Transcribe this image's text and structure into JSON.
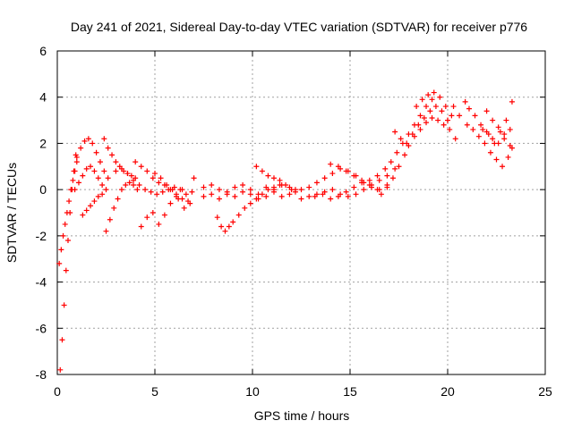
{
  "chart_data": {
    "type": "scatter",
    "title": "Day 241 of 2021, Sidereal Day-to-day VTEC variation (SDTVAR) for receiver p776",
    "xlabel": "GPS time / hours",
    "ylabel": "SDTVAR / TECUs",
    "xlim": [
      0,
      25
    ],
    "ylim": [
      -8,
      6
    ],
    "xticks": [
      0,
      5,
      10,
      15,
      20,
      25
    ],
    "yticks": [
      -8,
      -6,
      -4,
      -2,
      0,
      2,
      4,
      6
    ],
    "xtick_labels": [
      "0",
      "5",
      "10",
      "15",
      "20",
      "25"
    ],
    "ytick_labels": [
      "-8",
      "-6",
      "-4",
      "-2",
      "0",
      "2",
      "4",
      "6"
    ],
    "grid": true,
    "marker": "+",
    "color": "#ff0000",
    "series_segments": [
      {
        "name": "s1",
        "x": [
          0.15,
          0.25,
          0.35,
          0.45,
          0.55,
          0.65,
          0.75,
          0.85,
          0.95
        ],
        "y": [
          -7.8,
          -6.5,
          -5.0,
          -3.5,
          -2.2,
          -1.0,
          0.0,
          0.8,
          1.5
        ]
      },
      {
        "name": "s2",
        "x": [
          0.1,
          0.2,
          0.3,
          0.4,
          0.5,
          0.6,
          0.7,
          0.8,
          0.9,
          1.0
        ],
        "y": [
          -3.2,
          -2.6,
          -2.0,
          -1.5,
          -1.0,
          -0.5,
          0.0,
          0.4,
          0.8,
          1.2
        ]
      },
      {
        "name": "s3",
        "x": [
          1.0,
          1.2,
          1.4,
          1.6,
          1.8,
          2.0,
          2.2,
          2.4,
          2.6
        ],
        "y": [
          1.4,
          1.8,
          2.1,
          2.2,
          2.0,
          1.6,
          1.2,
          0.8,
          0.5
        ]
      },
      {
        "name": "s4",
        "x": [
          0.9,
          1.1,
          1.3,
          1.5,
          1.7,
          1.9,
          2.1,
          2.3,
          2.5
        ],
        "y": [
          0.0,
          0.3,
          0.6,
          0.9,
          1.0,
          0.8,
          0.5,
          0.2,
          0.0
        ]
      },
      {
        "name": "s5",
        "x": [
          1.3,
          1.5,
          1.7,
          1.9,
          2.1,
          2.3
        ],
        "y": [
          -1.1,
          -0.9,
          -0.7,
          -0.5,
          -0.3,
          -0.2
        ]
      },
      {
        "name": "s6",
        "x": [
          2.4,
          2.6,
          2.8,
          3.0,
          3.2,
          3.4,
          3.6,
          3.8,
          4.0
        ],
        "y": [
          2.2,
          1.8,
          1.5,
          1.2,
          1.0,
          0.8,
          0.7,
          0.6,
          0.5
        ]
      },
      {
        "name": "s7",
        "x": [
          2.5,
          2.7,
          2.9,
          3.1,
          3.3,
          3.5,
          3.7,
          3.9,
          4.1
        ],
        "y": [
          -1.8,
          -1.3,
          -0.8,
          -0.4,
          0.0,
          0.2,
          0.3,
          0.2,
          0.0
        ]
      },
      {
        "name": "s8",
        "x": [
          3.0,
          3.3,
          3.6,
          3.9,
          4.2,
          4.5,
          4.8,
          5.1,
          5.4,
          5.7,
          6.0,
          6.3,
          6.6,
          6.9
        ],
        "y": [
          0.8,
          0.9,
          0.7,
          0.4,
          0.2,
          0.0,
          -0.1,
          -0.2,
          -0.1,
          0.0,
          0.1,
          0.0,
          -0.2,
          -0.1
        ]
      },
      {
        "name": "s9",
        "x": [
          4.0,
          4.3,
          4.6,
          4.9,
          5.2,
          5.5,
          5.8,
          6.1,
          6.4,
          6.7
        ],
        "y": [
          1.2,
          1.0,
          0.8,
          0.5,
          0.3,
          0.2,
          0.0,
          -0.2,
          -0.4,
          -0.5
        ]
      },
      {
        "name": "s10",
        "x": [
          4.3,
          4.6,
          4.9,
          5.2,
          5.5,
          5.8,
          6.1,
          6.4
        ],
        "y": [
          -1.6,
          -1.2,
          -1.0,
          -1.5,
          -1.1,
          -0.6,
          -0.3,
          0.0
        ]
      },
      {
        "name": "s11",
        "x": [
          5.0,
          5.3,
          5.6,
          5.9,
          6.2,
          6.5,
          6.8,
          7.0
        ],
        "y": [
          0.7,
          0.5,
          0.2,
          0.0,
          -0.4,
          -0.8,
          -0.6,
          0.5
        ]
      },
      {
        "name": "s12",
        "x": [
          7.5,
          7.9,
          8.3,
          8.7,
          9.1,
          9.5,
          9.9,
          10.3,
          10.7,
          11.1,
          11.5,
          11.9,
          12.2
        ],
        "y": [
          0.1,
          0.2,
          0.0,
          -0.1,
          0.1,
          0.2,
          0.0,
          -0.2,
          0.1,
          0.0,
          0.2,
          0.1,
          0.0
        ]
      },
      {
        "name": "s13",
        "x": [
          7.5,
          7.9,
          8.3,
          8.7,
          9.1,
          9.5,
          9.9,
          10.3,
          10.7,
          11.1,
          11.5,
          11.9
        ],
        "y": [
          -0.3,
          -0.2,
          -0.4,
          -0.2,
          -0.3,
          -0.1,
          -0.2,
          -0.4,
          -0.3,
          -0.1,
          -0.3,
          -0.2
        ]
      },
      {
        "name": "s14",
        "x": [
          8.2,
          8.4,
          8.6,
          8.8,
          9.0,
          9.3,
          9.6,
          9.9,
          10.2,
          10.5,
          10.8,
          11.1,
          11.4
        ],
        "y": [
          -1.2,
          -1.6,
          -1.8,
          -1.6,
          -1.4,
          -1.1,
          -0.8,
          -0.6,
          -0.4,
          -0.2,
          0.0,
          0.1,
          0.2
        ]
      },
      {
        "name": "s15",
        "x": [
          10.2,
          10.5,
          10.8,
          11.1,
          11.4,
          11.7,
          12.0,
          12.2
        ],
        "y": [
          1.0,
          0.8,
          0.6,
          0.5,
          0.4,
          0.2,
          0.0,
          -0.1
        ]
      },
      {
        "name": "s16",
        "x": [
          12.5,
          12.9,
          13.3,
          13.7,
          14.1,
          14.5,
          14.9,
          15.3,
          15.7,
          16.1,
          16.5,
          16.9
        ],
        "y": [
          0.0,
          0.1,
          0.3,
          0.5,
          0.7,
          0.9,
          0.8,
          0.6,
          0.3,
          0.1,
          0.0,
          0.2
        ]
      },
      {
        "name": "s17",
        "x": [
          12.5,
          12.9,
          13.3,
          13.7,
          14.1,
          14.5,
          14.9,
          15.3,
          15.7,
          16.1,
          16.5,
          16.9,
          17.3
        ],
        "y": [
          -0.4,
          -0.3,
          -0.2,
          -0.1,
          0.0,
          -0.2,
          -0.3,
          -0.2,
          0.0,
          0.2,
          0.4,
          0.6,
          0.9
        ]
      },
      {
        "name": "s18",
        "x": [
          13.2,
          13.6,
          14.0,
          14.4,
          14.8,
          15.2,
          15.6
        ],
        "y": [
          -0.3,
          -0.2,
          -0.4,
          -0.3,
          -0.1,
          0.1,
          0.3
        ]
      },
      {
        "name": "s19",
        "x": [
          14.0,
          14.4,
          14.8,
          15.2,
          15.6,
          16.0,
          16.4
        ],
        "y": [
          1.1,
          1.0,
          0.8,
          0.6,
          0.4,
          0.2,
          0.0
        ]
      },
      {
        "name": "s20",
        "x": [
          16.0,
          16.4,
          16.8,
          17.1,
          17.4,
          17.7,
          18.0,
          18.3,
          18.6,
          18.9,
          19.2
        ],
        "y": [
          0.4,
          0.6,
          0.9,
          1.2,
          1.6,
          2.0,
          2.4,
          2.8,
          3.2,
          3.6,
          3.9
        ]
      },
      {
        "name": "s21",
        "x": [
          16.6,
          16.9,
          17.2,
          17.5,
          17.8
        ],
        "y": [
          -0.2,
          0.1,
          0.5,
          1.0,
          1.5
        ]
      },
      {
        "name": "s22",
        "x": [
          17.3,
          17.6,
          17.9,
          18.2,
          18.5,
          18.8,
          19.1,
          19.4,
          19.7,
          20.0
        ],
        "y": [
          2.5,
          2.2,
          2.0,
          2.4,
          2.8,
          3.1,
          3.4,
          3.6,
          3.4,
          3.0
        ]
      },
      {
        "name": "s23",
        "x": [
          18.0,
          18.3,
          18.6,
          18.9,
          19.2,
          19.5,
          19.8,
          20.1,
          20.4
        ],
        "y": [
          1.9,
          2.3,
          2.6,
          2.9,
          3.1,
          3.0,
          2.8,
          2.6,
          2.2
        ]
      },
      {
        "name": "s24",
        "x": [
          18.4,
          18.7,
          19.0,
          19.3,
          19.6,
          19.9,
          20.2
        ],
        "y": [
          3.6,
          3.9,
          4.1,
          4.2,
          4.0,
          3.6,
          3.2
        ]
      },
      {
        "name": "s25",
        "x": [
          20.0,
          20.3,
          20.6,
          20.9
        ],
        "y": [
          3.0,
          3.6,
          3.2,
          3.8
        ]
      },
      {
        "name": "s26",
        "x": [
          21.0,
          21.3,
          21.6,
          21.9,
          22.2,
          22.5,
          22.8,
          23.1,
          23.3
        ],
        "y": [
          2.8,
          2.6,
          2.3,
          2.0,
          1.6,
          1.3,
          1.0,
          1.4,
          1.8
        ]
      },
      {
        "name": "s27",
        "x": [
          21.1,
          21.4,
          21.7,
          22.0,
          22.3,
          22.6,
          22.9,
          23.2
        ],
        "y": [
          3.5,
          3.2,
          2.8,
          2.5,
          2.2,
          2.0,
          2.2,
          1.9
        ]
      },
      {
        "name": "s28",
        "x": [
          21.8,
          22.1,
          22.4,
          22.7,
          23.0,
          23.3
        ],
        "y": [
          2.6,
          2.4,
          2.0,
          2.5,
          3.0,
          3.8
        ]
      },
      {
        "name": "s29",
        "x": [
          22.0,
          22.3,
          22.6,
          22.9,
          23.2
        ],
        "y": [
          3.4,
          3.0,
          2.7,
          2.4,
          2.6
        ]
      }
    ]
  }
}
